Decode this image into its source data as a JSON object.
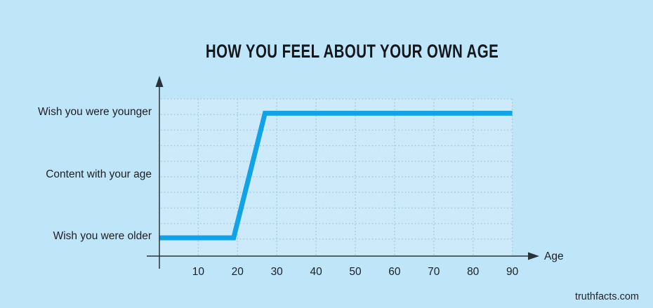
{
  "page": {
    "watermark": "truthfacts.com"
  },
  "chart_data": {
    "type": "line",
    "title": "HOW YOU FEEL ABOUT YOUR OWN AGE",
    "xlabel": "Age",
    "ylabel": "",
    "x_ticks": [
      10,
      20,
      30,
      40,
      50,
      60,
      70,
      80,
      90
    ],
    "xlim": [
      0,
      90
    ],
    "y_levels": [
      "Wish you were older",
      "Content with your age",
      "Wish you were younger"
    ],
    "series": [
      {
        "name": "feeling-about-own-age",
        "points": [
          {
            "age": 0,
            "feeling": "Wish you were older"
          },
          {
            "age": 19,
            "feeling": "Wish you were older"
          },
          {
            "age": 27,
            "feeling": "Wish you were younger"
          },
          {
            "age": 90,
            "feeling": "Wish you were younger"
          }
        ]
      }
    ],
    "grid": {
      "style": "dotted",
      "horizontal_lines": 10,
      "vertical_lines_at_ticks": true
    },
    "legend": "none",
    "colors": {
      "background": "#bfe5f8",
      "plot_background": "#cdeafb",
      "grid": "#a3c6da",
      "line": "#12a3e6",
      "axis": "#2b3238",
      "text": "#1b1f24",
      "title_text": "#14181c"
    }
  }
}
